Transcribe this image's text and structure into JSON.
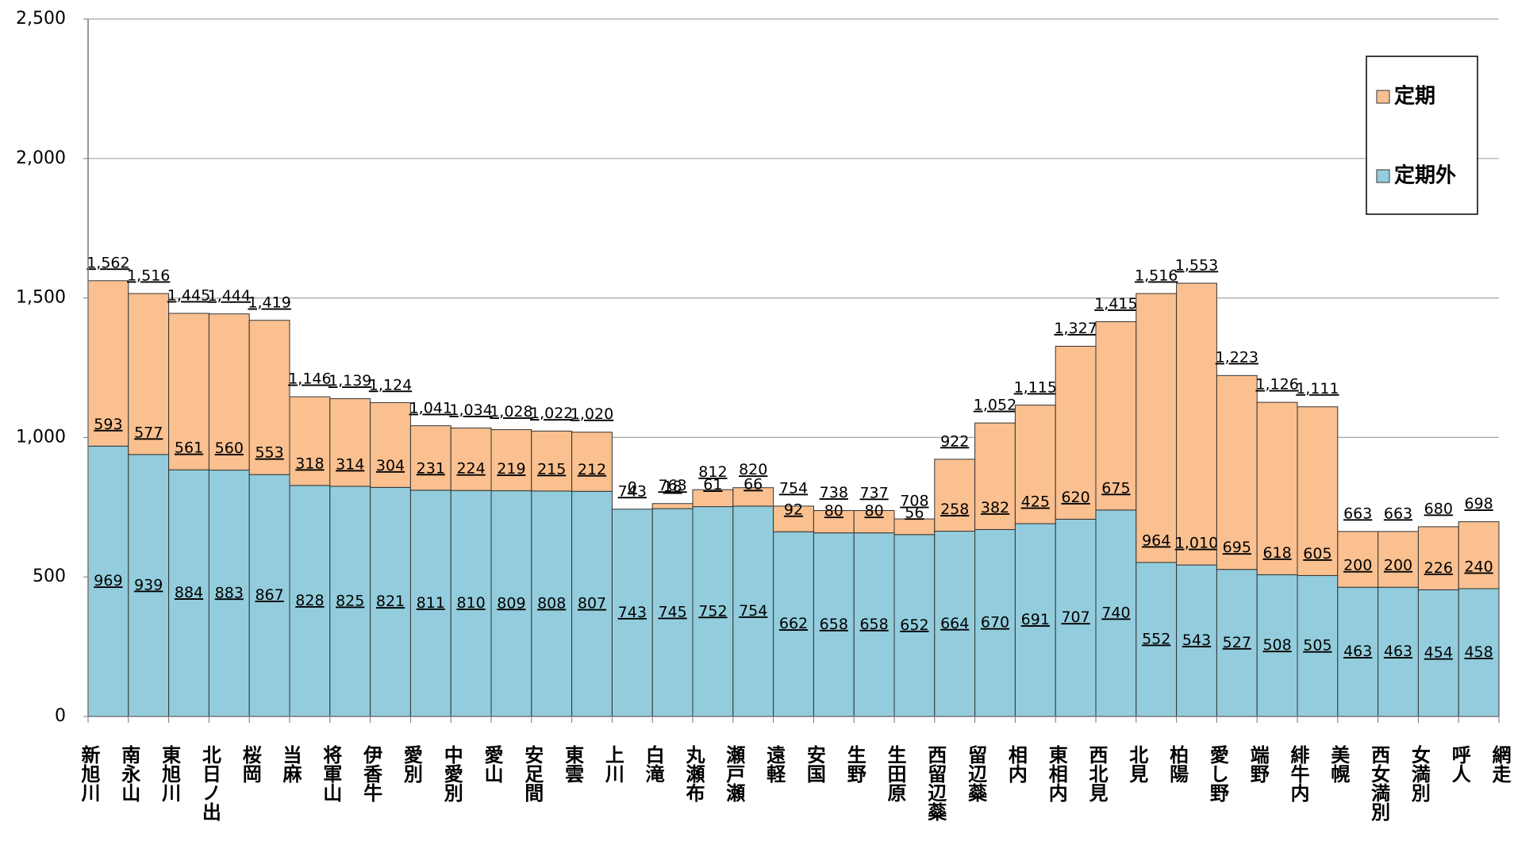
{
  "chart_data": {
    "type": "stacked_bar",
    "boundaries": [
      "新旭川",
      "南永山",
      "東旭川",
      "北日ノ出",
      "桜岡",
      "当麻",
      "将軍山",
      "伊香牛",
      "愛別",
      "中愛別",
      "愛山",
      "安足間",
      "東雲",
      "上川",
      "白滝",
      "丸瀬布",
      "瀬戸瀬",
      "遠軽",
      "安国",
      "生野",
      "生田原",
      "西留辺蘂",
      "留辺蘂",
      "相内",
      "東相内",
      "西北見",
      "北見",
      "柏陽",
      "愛し野",
      "端野",
      "緋牛内",
      "美幌",
      "西女満別",
      "女満別",
      "呼人",
      "網走"
    ],
    "series": [
      {
        "name": "定期外",
        "color": "#93cddd",
        "values": [
          969,
          939,
          884,
          883,
          867,
          828,
          825,
          821,
          811,
          810,
          809,
          808,
          807,
          743,
          745,
          752,
          754,
          662,
          658,
          658,
          652,
          664,
          670,
          691,
          707,
          740,
          552,
          543,
          527,
          508,
          505,
          463,
          463,
          454,
          458
        ]
      },
      {
        "name": "定期",
        "color": "#fac090",
        "values": [
          593,
          577,
          561,
          560,
          553,
          318,
          314,
          304,
          231,
          224,
          219,
          215,
          212,
          0,
          18,
          61,
          66,
          92,
          80,
          80,
          56,
          258,
          382,
          425,
          620,
          675,
          964,
          1010,
          695,
          618,
          605,
          200,
          200,
          226,
          240
        ],
        "value_labels": [
          "593",
          "577",
          "561",
          "560",
          "553",
          "318",
          "314",
          "304",
          "231",
          "224",
          "219",
          "215",
          "212",
          "0",
          "18",
          "61",
          "66",
          "92",
          "80",
          "80",
          "56",
          "258",
          "382",
          "425",
          "620",
          "675",
          "964",
          "1,010",
          "695",
          "618",
          "605",
          "200",
          "200",
          "226",
          "240"
        ]
      }
    ],
    "totals": {
      "values": [
        1562,
        1516,
        1445,
        1444,
        1419,
        1146,
        1139,
        1124,
        1041,
        1034,
        1028,
        1022,
        1020,
        743,
        763,
        812,
        820,
        754,
        738,
        737,
        708,
        922,
        1052,
        1115,
        1327,
        1415,
        1516,
        1553,
        1223,
        1126,
        1111,
        663,
        663,
        680,
        698
      ],
      "value_labels": [
        "1,562",
        "1,516",
        "1,445",
        "1,444",
        "1,419",
        "1,146",
        "1,139",
        "1,124",
        "1,041",
        "1,034",
        "1,028",
        "1,022",
        "1,020",
        "743",
        "763",
        "812",
        "820",
        "754",
        "738",
        "737",
        "708",
        "922",
        "1,052",
        "1,115",
        "1,327",
        "1,415",
        "1,516",
        "1,553",
        "1,223",
        "1,126",
        "1,111",
        "663",
        "663",
        "680",
        "698"
      ]
    },
    "ylim": [
      0,
      2500
    ],
    "yticks": [
      0,
      500,
      {
        "value": 1000,
        "label": "1,000"
      },
      {
        "value": 1500,
        "label": "1,500"
      },
      {
        "value": 2000,
        "label": "2,000"
      },
      {
        "value": 2500,
        "label": "2,500"
      }
    ],
    "grid": true,
    "legend": "upper right"
  }
}
